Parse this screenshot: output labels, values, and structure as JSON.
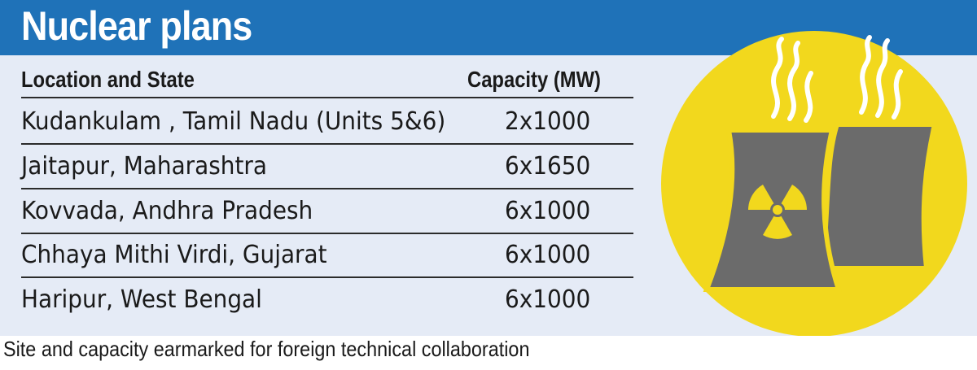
{
  "header": {
    "title": "Nuclear plans"
  },
  "table": {
    "columns": [
      "Location and State",
      "Capacity (MW)"
    ],
    "rows": [
      {
        "location": "Kudankulam , Tamil Nadu (Units 5&6)",
        "capacity": "2x1000"
      },
      {
        "location": "Jaitapur, Maharashtra",
        "capacity": "6x1650"
      },
      {
        "location": "Kovvada, Andhra Pradesh",
        "capacity": "6x1000"
      },
      {
        "location": "Chhaya Mithi Virdi, Gujarat",
        "capacity": "6x1000"
      },
      {
        "location": "Haripur, West Bengal",
        "capacity": "6x1000"
      }
    ]
  },
  "footer": {
    "note": "Site and capacity earmarked for foreign technical collaboration"
  },
  "illustration": {
    "icon": "nuclear-cooling-towers-icon",
    "colors": {
      "circle": "#f2d81d",
      "tower": "#6b6b6b",
      "steam": "#ffffff",
      "header": "#1f72b8",
      "panel": "#e5ebf6"
    }
  }
}
